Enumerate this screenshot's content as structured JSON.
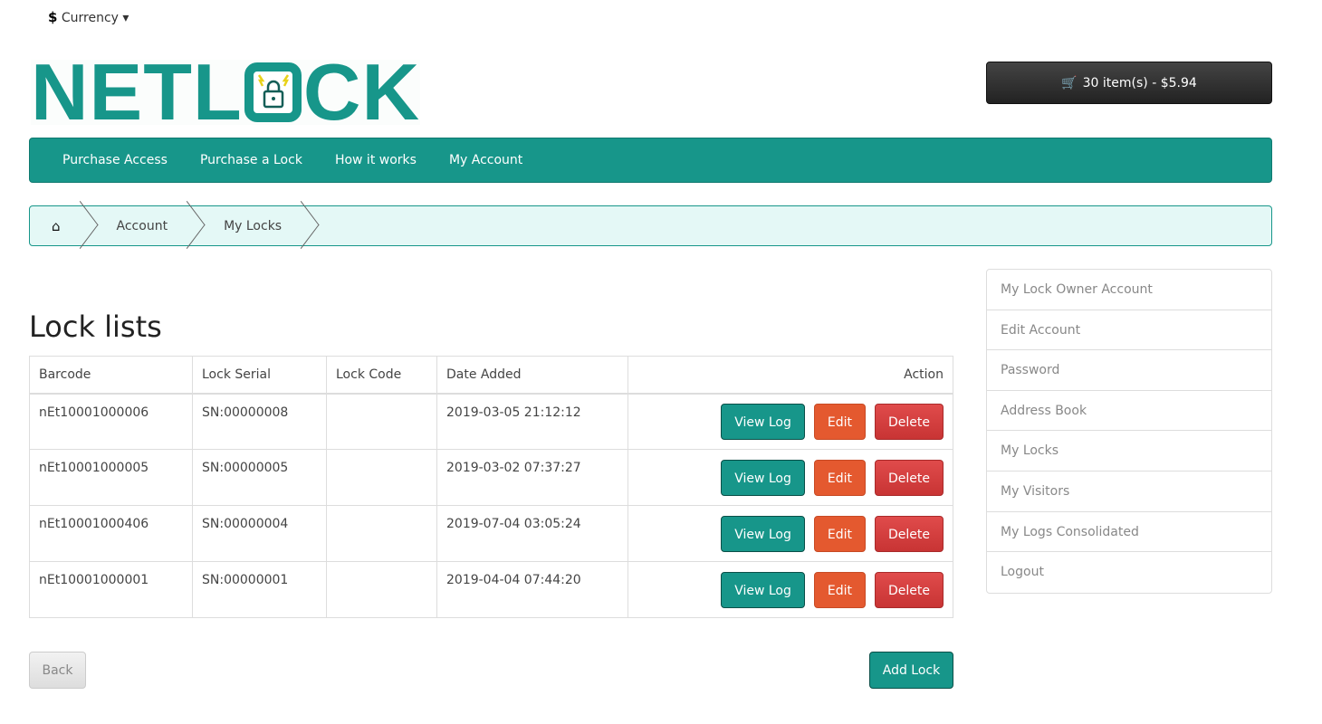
{
  "header": {
    "currency_symbol": "$",
    "currency_label": "Currency",
    "logo_text_left": "NETL",
    "logo_text_right": "CK",
    "cart_label": "30 item(s) - $5.94"
  },
  "nav": [
    "Purchase Access",
    "Purchase a Lock",
    "How it works",
    "My Account"
  ],
  "breadcrumb": [
    "Account",
    "My Locks"
  ],
  "main": {
    "title": "Lock lists",
    "columns": [
      "Barcode",
      "Lock Serial",
      "Lock Code",
      "Date Added",
      "Action"
    ],
    "rows": [
      {
        "barcode": "nEt10001000006",
        "serial": "SN:00000008",
        "code": "",
        "date": "2019-03-05 21:12:12"
      },
      {
        "barcode": "nEt10001000005",
        "serial": "SN:00000005",
        "code": "",
        "date": "2019-03-02 07:37:27"
      },
      {
        "barcode": "nEt10001000406",
        "serial": "SN:00000004",
        "code": "",
        "date": "2019-07-04 03:05:24"
      },
      {
        "barcode": "nEt10001000001",
        "serial": "SN:00000001",
        "code": "",
        "date": "2019-04-04 07:44:20"
      }
    ],
    "actions": {
      "view": "View Log",
      "edit": "Edit",
      "delete": "Delete"
    },
    "back": "Back",
    "add": "Add Lock"
  },
  "sidebar": [
    "My Lock Owner Account",
    "Edit Account",
    "Password",
    "Address Book",
    "My Locks",
    "My Visitors",
    "My Logs Consolidated",
    "Logout"
  ],
  "colors": {
    "brand": "#17968a",
    "edit": "#e4592f",
    "delete": "#d03c3c"
  }
}
